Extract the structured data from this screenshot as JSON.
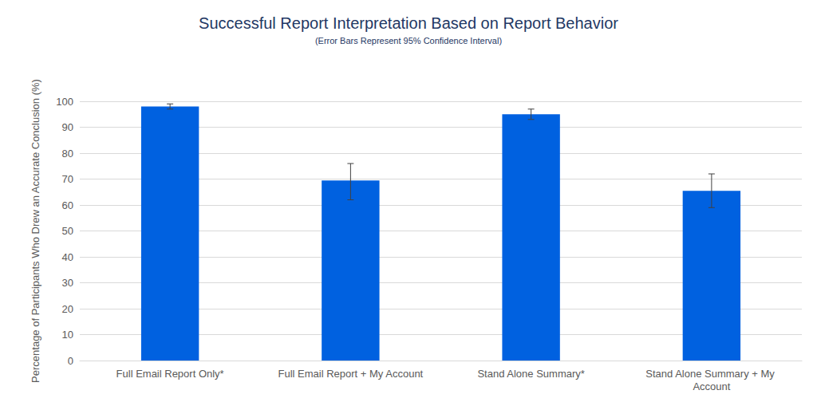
{
  "chart_data": {
    "type": "bar",
    "title": "Successful Report Interpretation Based on Report Behavior",
    "subtitle": "(Error Bars Represent 95% Confidence Interval)",
    "y_label": "Percentage of Participants Who Drew an Accurate Conclusion (%)",
    "categories": [
      "Full Email Report Only*",
      "Full Email Report + My Account",
      "Stand Alone Summary*",
      "Stand Alone Summary + My Account"
    ],
    "values": [
      98,
      69.5,
      95,
      65.5
    ],
    "ci_low": [
      97,
      62,
      93,
      59
    ],
    "ci_high": [
      99,
      76,
      97,
      72
    ],
    "color": "#0061e0",
    "ylim": [
      0,
      100
    ],
    "yticks": [
      0,
      10,
      20,
      30,
      40,
      50,
      60,
      70,
      80,
      90,
      100
    ],
    "grid": true
  }
}
